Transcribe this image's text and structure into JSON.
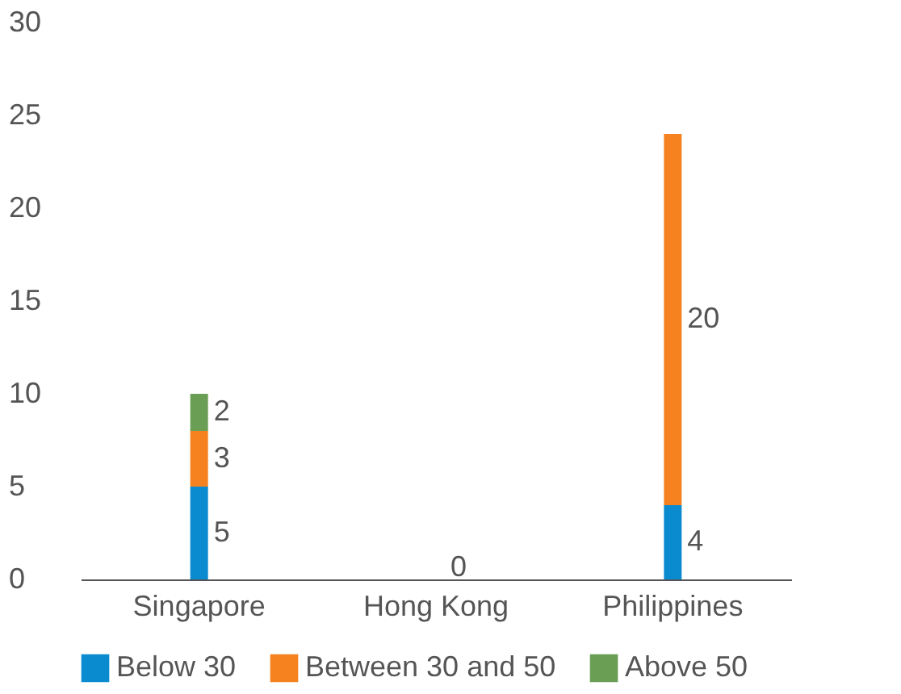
{
  "chart_data": {
    "type": "bar",
    "stacked": true,
    "categories": [
      "Singapore",
      "Hong Kong",
      "Philippines"
    ],
    "series": [
      {
        "name": "Below 30",
        "color": "#0a8bd0",
        "values": [
          5,
          0,
          4
        ],
        "value_labels": [
          "5",
          "0",
          "4"
        ]
      },
      {
        "name": "Between 30 and 50",
        "color": "#f5821f",
        "values": [
          3,
          null,
          20
        ],
        "value_labels": [
          "3",
          null,
          "20"
        ]
      },
      {
        "name": "Above 50",
        "color": "#6a9e55",
        "values": [
          2,
          null,
          null
        ],
        "value_labels": [
          "2",
          null,
          null
        ]
      }
    ],
    "ylim": [
      0,
      30
    ],
    "yticks": [
      0,
      5,
      10,
      15,
      20,
      25,
      30
    ],
    "grid": false,
    "legend": "bottom"
  }
}
